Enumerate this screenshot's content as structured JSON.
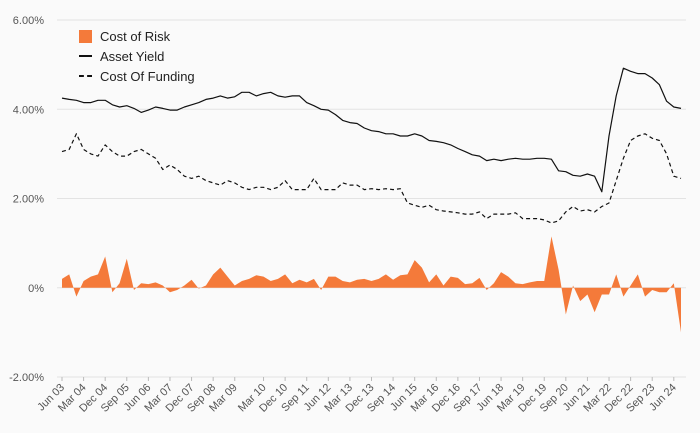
{
  "chart_data": {
    "type": "line",
    "title": "",
    "xlabel": "",
    "ylabel": "",
    "ylim": [
      -2,
      6
    ],
    "yticks": [
      "-2.00%",
      "0%",
      "2.00%",
      "4.00%",
      "6.00%"
    ],
    "ytick_values": [
      -2,
      0,
      2,
      4,
      6
    ],
    "tick_labels": [
      "Jun 03",
      "Mar 04",
      "Dec 04",
      "Sep 05",
      "Jun 06",
      "Mar 07",
      "Dec 07",
      "Sep 08",
      "Mar 09",
      "Mar 10",
      "Dec 10",
      "Sep 11",
      "Jun 12",
      "Mar 13",
      "Dec 13",
      "Sep 14",
      "Jun 15",
      "Mar 16",
      "Dec 16",
      "Sep 17",
      "Jun 18",
      "Mar 19",
      "Dec 19",
      "Sep 20",
      "Jun 21",
      "Mar 22",
      "Dec 22",
      "Sep 23",
      "Jun 24"
    ],
    "tick_index": [
      0,
      3,
      6,
      9,
      12,
      15,
      18,
      21,
      24,
      28,
      31,
      34,
      37,
      40,
      43,
      46,
      49,
      52,
      55,
      58,
      61,
      64,
      67,
      70,
      73,
      76,
      79,
      82,
      85
    ],
    "series": [
      {
        "name": "Cost of Risk",
        "style": "area",
        "color": "#f47a3a",
        "values": [
          0.2,
          0.3,
          -0.2,
          0.15,
          0.25,
          0.3,
          0.7,
          -0.1,
          0.1,
          0.65,
          -0.05,
          0.1,
          0.08,
          0.12,
          0.05,
          -0.1,
          -0.05,
          0.05,
          0.18,
          -0.02,
          0.05,
          0.3,
          0.45,
          0.25,
          0.05,
          0.15,
          0.2,
          0.28,
          0.25,
          0.15,
          0.2,
          0.3,
          0.1,
          0.18,
          0.12,
          0.2,
          -0.05,
          0.25,
          0.25,
          0.15,
          0.12,
          0.18,
          0.2,
          0.15,
          0.2,
          0.3,
          0.18,
          0.28,
          0.3,
          0.62,
          0.45,
          0.12,
          0.3,
          0.05,
          0.25,
          0.22,
          0.08,
          0.1,
          0.22,
          -0.05,
          0.1,
          0.35,
          0.25,
          0.1,
          0.08,
          0.12,
          0.15,
          0.15,
          1.15,
          0.4,
          -0.6,
          0.05,
          -0.3,
          -0.15,
          -0.55,
          -0.15,
          -0.15,
          0.3,
          -0.2,
          0.05,
          0.3,
          -0.2,
          -0.05,
          -0.1,
          -0.1,
          0.1,
          -1.0
        ]
      },
      {
        "name": "Asset Yield",
        "style": "solid",
        "color": "#111111",
        "values": [
          4.25,
          4.22,
          4.2,
          4.15,
          4.15,
          4.2,
          4.2,
          4.1,
          4.05,
          4.08,
          4.02,
          3.93,
          3.98,
          4.05,
          4.02,
          3.98,
          3.98,
          4.05,
          4.1,
          4.15,
          4.22,
          4.25,
          4.3,
          4.25,
          4.28,
          4.38,
          4.38,
          4.3,
          4.35,
          4.38,
          4.3,
          4.27,
          4.3,
          4.3,
          4.15,
          4.08,
          4.0,
          3.98,
          3.88,
          3.75,
          3.7,
          3.68,
          3.58,
          3.52,
          3.5,
          3.45,
          3.45,
          3.4,
          3.4,
          3.45,
          3.4,
          3.3,
          3.28,
          3.25,
          3.2,
          3.12,
          3.05,
          2.98,
          2.95,
          2.85,
          2.88,
          2.85,
          2.88,
          2.9,
          2.88,
          2.88,
          2.9,
          2.9,
          2.88,
          2.62,
          2.6,
          2.52,
          2.5,
          2.55,
          2.5,
          2.15,
          3.4,
          4.3,
          4.92,
          4.85,
          4.8,
          4.8,
          4.7,
          4.55,
          4.18,
          4.05,
          4.02
        ]
      },
      {
        "name": "Cost Of Funding",
        "style": "dashed",
        "color": "#111111",
        "values": [
          3.05,
          3.1,
          3.45,
          3.1,
          3.0,
          2.95,
          3.2,
          3.05,
          2.95,
          2.95,
          3.05,
          3.1,
          3.0,
          2.9,
          2.65,
          2.75,
          2.65,
          2.5,
          2.45,
          2.5,
          2.4,
          2.35,
          2.3,
          2.4,
          2.35,
          2.25,
          2.2,
          2.25,
          2.25,
          2.2,
          2.25,
          2.4,
          2.2,
          2.2,
          2.2,
          2.45,
          2.2,
          2.2,
          2.2,
          2.35,
          2.3,
          2.3,
          2.2,
          2.22,
          2.2,
          2.22,
          2.2,
          2.22,
          1.9,
          1.85,
          1.8,
          1.85,
          1.75,
          1.72,
          1.7,
          1.68,
          1.65,
          1.65,
          1.7,
          1.55,
          1.65,
          1.65,
          1.65,
          1.68,
          1.55,
          1.55,
          1.55,
          1.52,
          1.45,
          1.5,
          1.7,
          1.82,
          1.72,
          1.75,
          1.7,
          1.82,
          1.9,
          2.4,
          2.9,
          3.3,
          3.4,
          3.45,
          3.35,
          3.3,
          3.0,
          2.5,
          2.45
        ]
      }
    ]
  }
}
